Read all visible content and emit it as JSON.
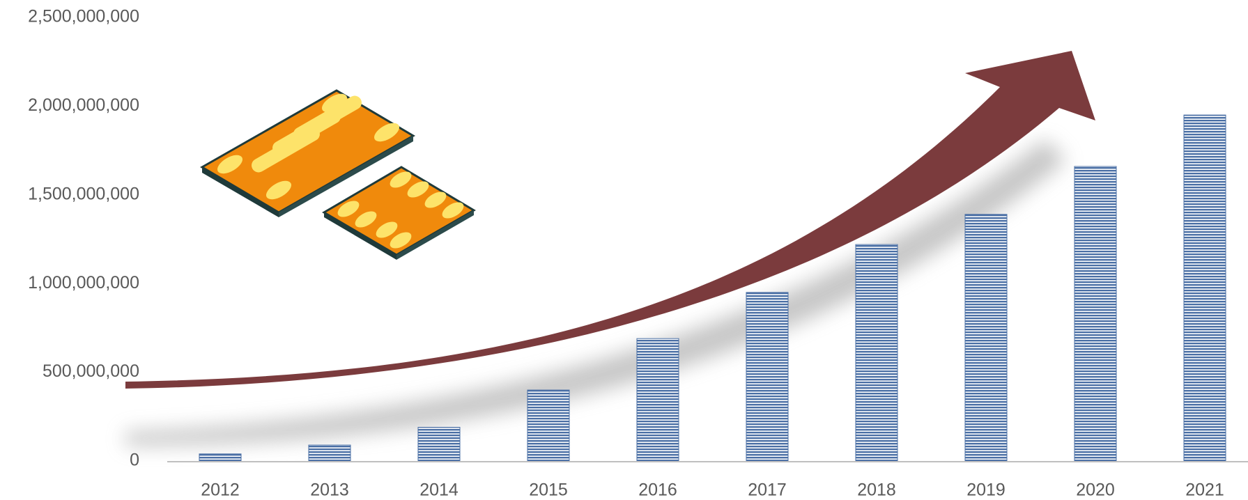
{
  "chart_data": {
    "type": "bar",
    "categories": [
      "2012",
      "2013",
      "2014",
      "2015",
      "2016",
      "2017",
      "2018",
      "2019",
      "2020",
      "2021"
    ],
    "values": [
      40000000,
      90000000,
      190000000,
      400000000,
      690000000,
      950000000,
      1220000000,
      1390000000,
      1660000000,
      1950000000
    ],
    "color": "#4a6fa5",
    "ylim": [
      0,
      2500000000
    ],
    "yticks": [
      0,
      {
        "value": 500000000,
        "label": "500,000,000"
      },
      {
        "value": 1000000000,
        "label": "1,000,000,000"
      },
      {
        "value": 1500000000,
        "label": "1,500,000,000"
      },
      {
        "value": 2000000000,
        "label": "2,000,000,000"
      },
      {
        "value": 2500000000,
        "label": "2,500,000,000"
      }
    ],
    "grid": false
  }
}
